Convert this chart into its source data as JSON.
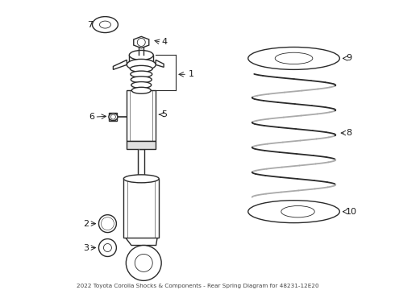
{
  "title": "2022 Toyota Corolla Shocks & Components - Rear Spring Diagram for 48231-12E20",
  "bg_color": "#ffffff",
  "line_color": "#2a2a2a",
  "label_color": "#1a1a1a",
  "fig_w": 4.9,
  "fig_h": 3.6,
  "dpi": 100
}
